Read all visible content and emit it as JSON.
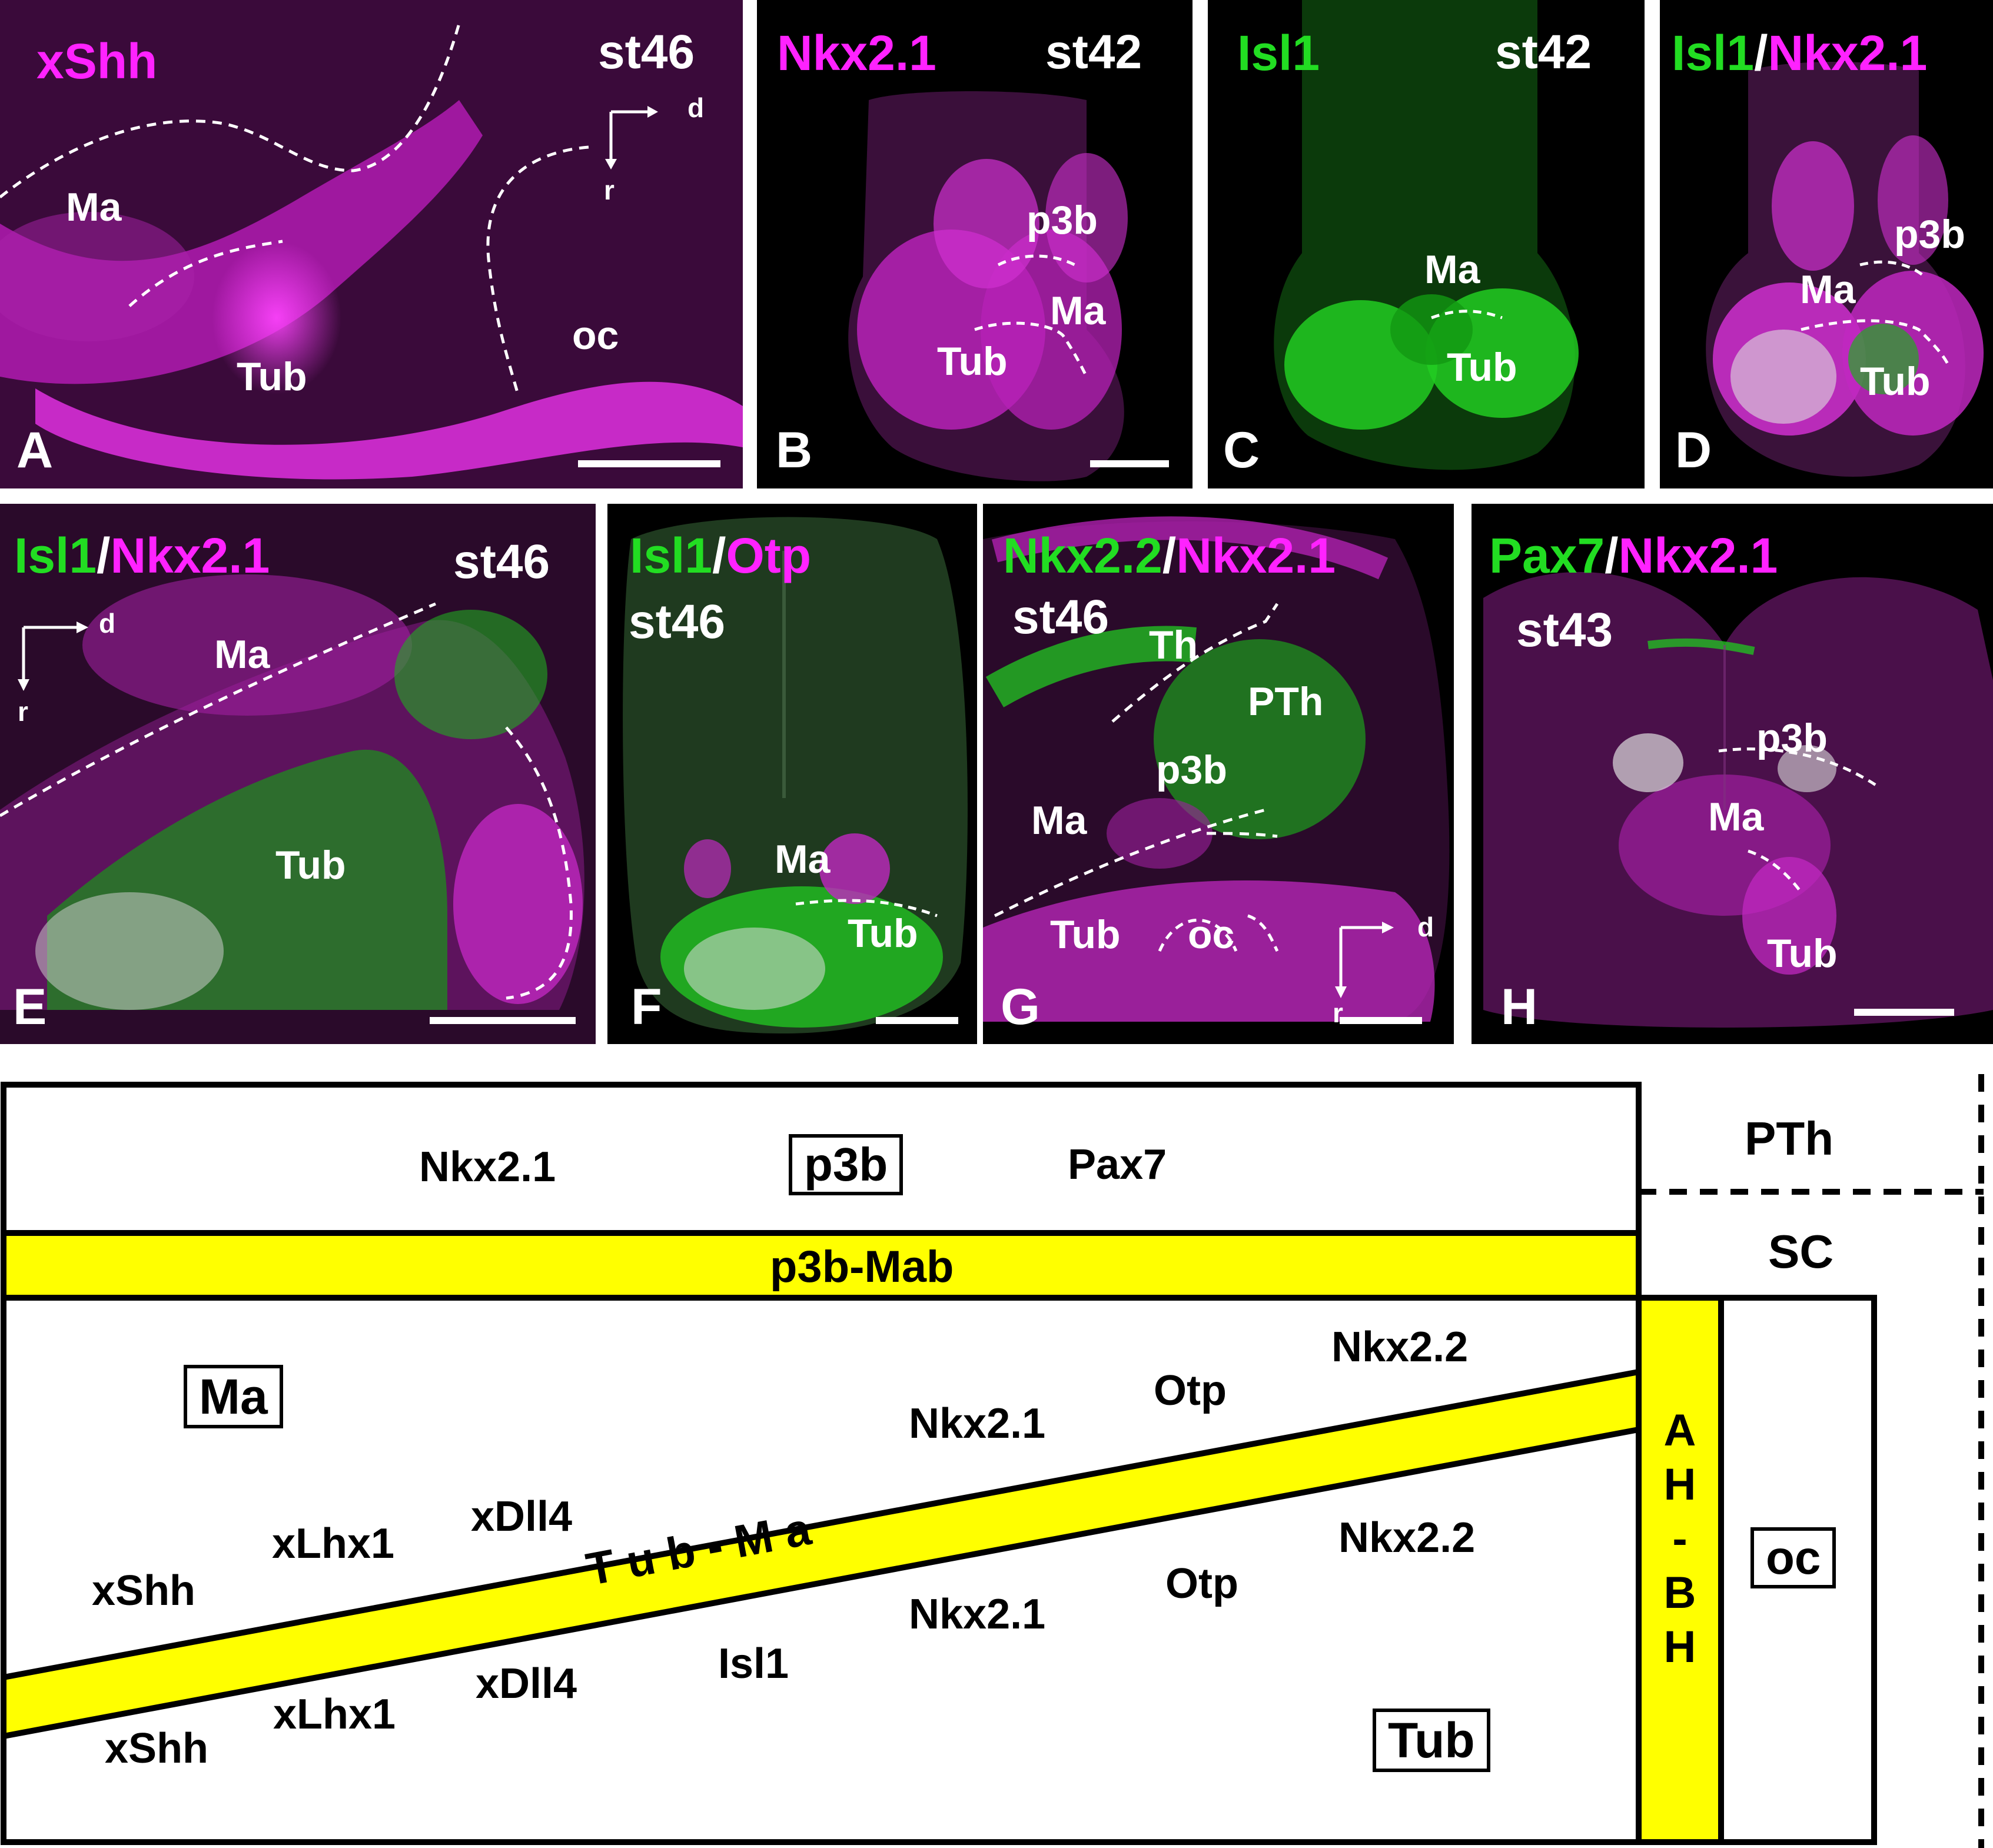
{
  "panels": {
    "A": {
      "letter": "A",
      "stage": "st46",
      "marker": "xShh",
      "regions": {
        "ma": "Ma",
        "tub": "Tub",
        "oc": "oc"
      },
      "axis": {
        "d": "d",
        "r": "r"
      }
    },
    "B": {
      "letter": "B",
      "stage": "st42",
      "marker": "Nkx2.1",
      "regions": {
        "p3b": "p3b",
        "ma": "Ma",
        "tub": "Tub"
      }
    },
    "C": {
      "letter": "C",
      "stage": "st42",
      "marker": "Isl1",
      "regions": {
        "ma": "Ma",
        "tub": "Tub"
      }
    },
    "D": {
      "letter": "D",
      "stage": "",
      "marker_green": "Isl1",
      "separator": "/",
      "marker_magenta": "Nkx2.1",
      "regions": {
        "p3b": "p3b",
        "ma": "Ma",
        "tub": "Tub"
      }
    },
    "E": {
      "letter": "E",
      "stage": "st46",
      "marker_green": "Isl1",
      "separator": "/",
      "marker_magenta": "Nkx2.1",
      "regions": {
        "ma": "Ma",
        "tub": "Tub"
      },
      "axis": {
        "d": "d",
        "r": "r"
      }
    },
    "F": {
      "letter": "F",
      "stage": "st46",
      "marker_green": "Isl1",
      "separator": "/",
      "marker_magenta": "Otp",
      "regions": {
        "ma": "Ma",
        "tub": "Tub"
      }
    },
    "G": {
      "letter": "G",
      "stage": "st46",
      "marker_green": "Nkx2.2",
      "separator": "/",
      "marker_magenta": "Nkx2.1",
      "regions": {
        "th": "Th",
        "pth": "PTh",
        "p3b": "p3b",
        "ma": "Ma",
        "tub": "Tub",
        "oc": "oc"
      },
      "axis": {
        "d": "d",
        "r": "r"
      }
    },
    "H": {
      "letter": "H",
      "stage": "st43",
      "marker_green": "Pax7",
      "separator": "/",
      "marker_magenta": "Nkx2.1",
      "regions": {
        "p3b": "p3b",
        "ma": "Ma",
        "tub": "Tub"
      }
    }
  },
  "diagram": {
    "top": {
      "nkx21": "Nkx2.1",
      "p3b": "p3b",
      "pax7": "Pax7"
    },
    "p3b_mab": "p3b-Mab",
    "ma_box": "Ma",
    "upper_genes": {
      "nkx22": "Nkx2.2",
      "otp": "Otp",
      "nkx21": "Nkx2.1",
      "xdll4": "xDll4",
      "xlhx1": "xLhx1",
      "xshh": "xShh"
    },
    "tub_ma": "T u b - M a",
    "lower_genes": {
      "nkx22": "Nkx2.2",
      "otp": "Otp",
      "nkx21": "Nkx2.1",
      "isl1": "Isl1",
      "xdll4": "xDll4",
      "xlhx1": "xLhx1",
      "xshh": "xShh"
    },
    "tub_box": "Tub",
    "ah_bh": [
      "A",
      "H",
      "-",
      "B",
      "H"
    ],
    "pth": "PTh",
    "sc": "SC",
    "oc_box": "oc"
  },
  "colors": {
    "magenta": "#ff22ff",
    "green": "#22dd22",
    "yellow": "#ffff00",
    "black": "#000000"
  }
}
